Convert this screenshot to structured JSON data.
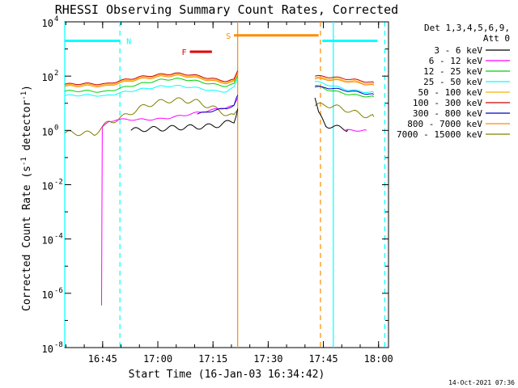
{
  "chart_data": {
    "type": "line",
    "title": "RHESSI Observing Summary Count Rates, Corrected",
    "xlabel": "Start Time (16-Jan-03 16:34:42)",
    "ylabel_main": "Corrected Count Rate (s",
    "ylabel_sup1": "-1",
    "ylabel_mid": " detector",
    "ylabel_sup2": "-1",
    "ylabel_end": ")",
    "x_units": "minutes after 16:34:42",
    "xlim": [
      0,
      88
    ],
    "ylim_log10": [
      -8,
      4
    ],
    "x_ticks": [
      {
        "t": 10.3,
        "label": "16:45"
      },
      {
        "t": 25.3,
        "label": "17:00"
      },
      {
        "t": 40.3,
        "label": "17:15"
      },
      {
        "t": 55.3,
        "label": "17:30"
      },
      {
        "t": 70.3,
        "label": "17:45"
      },
      {
        "t": 85.3,
        "label": "18:00"
      }
    ],
    "y_ticks": [
      {
        "exp": -8,
        "base": "10",
        "sup": "-8"
      },
      {
        "exp": -6,
        "base": "10",
        "sup": "-6"
      },
      {
        "exp": -4,
        "base": "10",
        "sup": "-4"
      },
      {
        "exp": -2,
        "base": "10",
        "sup": "-2"
      },
      {
        "exp": 0,
        "base": "10",
        "sup": "0"
      },
      {
        "exp": 2,
        "base": "10",
        "sup": "2"
      },
      {
        "exp": 4,
        "base": "10",
        "sup": "4"
      }
    ],
    "legend_header": [
      "Det 1,3,4,5,6,9,",
      "Att 0"
    ],
    "legend_position": "right",
    "series": [
      {
        "name": "3 - 6 keV",
        "color": "#000000",
        "key": "s3_6"
      },
      {
        "name": "6 - 12 keV",
        "color": "#ff00ff",
        "key": "s6_12"
      },
      {
        "name": "12 - 25 keV",
        "color": "#00d000",
        "key": "s12_25"
      },
      {
        "name": "25 - 50 keV",
        "color": "#00ffff",
        "key": "s25_50"
      },
      {
        "name": "50 - 100 keV",
        "color": "#ffb000",
        "key": "s50_100"
      },
      {
        "name": "100 - 300 keV",
        "color": "#d00000",
        "key": "s100_300"
      },
      {
        "name": "300 - 800 keV",
        "color": "#0000c0",
        "key": "s300_800"
      },
      {
        "name": "800 - 7000 keV",
        "color": "#ff8c00",
        "key": "s800_7000"
      },
      {
        "name": "7000 - 15000 keV",
        "color": "#808000",
        "key": "s7000_15000"
      }
    ],
    "series_points": {
      "s25_50": [
        [
          0,
          1.28
        ],
        [
          4,
          1.3
        ],
        [
          8,
          1.3
        ],
        [
          11,
          1.26
        ],
        [
          14,
          1.36
        ],
        [
          20,
          1.5
        ],
        [
          26,
          1.62
        ],
        [
          30,
          1.64
        ],
        [
          34,
          1.6
        ],
        [
          38,
          1.52
        ],
        [
          41,
          1.44
        ],
        [
          44,
          1.44
        ],
        [
          46,
          1.58
        ],
        [
          47,
          1.9
        ]
      ],
      "s12_25": [
        [
          0,
          1.44
        ],
        [
          4,
          1.46
        ],
        [
          8,
          1.44
        ],
        [
          11,
          1.42
        ],
        [
          14,
          1.52
        ],
        [
          20,
          1.7
        ],
        [
          26,
          1.86
        ],
        [
          30,
          1.9
        ],
        [
          34,
          1.86
        ],
        [
          38,
          1.76
        ],
        [
          41,
          1.68
        ],
        [
          44,
          1.64
        ],
        [
          46,
          1.7
        ],
        [
          47,
          2.0
        ]
      ],
      "s800_7000": [
        [
          0,
          1.62
        ],
        [
          4,
          1.64
        ],
        [
          8,
          1.64
        ],
        [
          11,
          1.62
        ],
        [
          14,
          1.72
        ],
        [
          20,
          1.88
        ],
        [
          26,
          1.98
        ],
        [
          30,
          2.02
        ],
        [
          34,
          1.98
        ],
        [
          38,
          1.88
        ],
        [
          41,
          1.8
        ],
        [
          44,
          1.74
        ],
        [
          46,
          1.78
        ],
        [
          47,
          2.1
        ]
      ],
      "s100_300": [
        [
          0,
          1.7
        ],
        [
          4,
          1.72
        ],
        [
          8,
          1.72
        ],
        [
          11,
          1.7
        ],
        [
          14,
          1.8
        ],
        [
          20,
          1.96
        ],
        [
          26,
          2.06
        ],
        [
          30,
          2.1
        ],
        [
          34,
          2.06
        ],
        [
          38,
          1.96
        ],
        [
          41,
          1.88
        ],
        [
          44,
          1.82
        ],
        [
          46,
          1.86
        ],
        [
          47,
          2.2
        ]
      ],
      "s50_100": [
        [
          0,
          1.66
        ],
        [
          4,
          1.68
        ],
        [
          8,
          1.68
        ],
        [
          11,
          1.66
        ],
        [
          14,
          1.76
        ],
        [
          20,
          1.92
        ],
        [
          26,
          2.02
        ],
        [
          30,
          2.06
        ],
        [
          34,
          2.02
        ],
        [
          38,
          1.92
        ],
        [
          41,
          1.84
        ],
        [
          44,
          1.78
        ],
        [
          46,
          1.82
        ],
        [
          47,
          2.14
        ]
      ],
      "s300_800": [
        [
          36,
          0.6
        ],
        [
          40,
          0.72
        ],
        [
          44,
          0.82
        ],
        [
          46,
          0.92
        ],
        [
          47,
          1.3
        ]
      ],
      "s6_12": [
        [
          10,
          -6.45
        ],
        [
          10.2,
          0.1
        ],
        [
          12,
          0.32
        ],
        [
          14,
          0.4
        ],
        [
          18,
          0.4
        ],
        [
          22,
          0.4
        ],
        [
          26,
          0.42
        ],
        [
          30,
          0.5
        ],
        [
          34,
          0.6
        ],
        [
          38,
          0.7
        ],
        [
          42,
          0.8
        ],
        [
          46,
          0.9
        ],
        [
          47,
          1.2
        ]
      ],
      "s3_6": [
        [
          18,
          0.0
        ],
        [
          22,
          0.05
        ],
        [
          26,
          0.06
        ],
        [
          30,
          0.1
        ],
        [
          34,
          0.12
        ],
        [
          38,
          0.14
        ],
        [
          42,
          0.2
        ],
        [
          46,
          0.35
        ],
        [
          47,
          0.8
        ]
      ],
      "s7000_15000": [
        [
          0,
          -0.1
        ],
        [
          4,
          -0.1
        ],
        [
          8,
          -0.12
        ],
        [
          12,
          0.3
        ],
        [
          16,
          0.5
        ],
        [
          20,
          0.8
        ],
        [
          24,
          1.0
        ],
        [
          28,
          1.1
        ],
        [
          32,
          1.12
        ],
        [
          36,
          1.05
        ],
        [
          40,
          0.85
        ],
        [
          44,
          0.6
        ],
        [
          46,
          0.5
        ],
        [
          47,
          0.75
        ]
      ],
      "s25_50_b": [
        [
          68,
          1.8
        ],
        [
          71,
          1.7
        ],
        [
          74,
          1.6
        ],
        [
          77,
          1.5
        ],
        [
          80,
          1.44
        ],
        [
          84,
          1.4
        ]
      ],
      "s12_25_b": [
        [
          68,
          1.66
        ],
        [
          71,
          1.52
        ],
        [
          74,
          1.42
        ],
        [
          77,
          1.34
        ],
        [
          80,
          1.28
        ],
        [
          84,
          1.24
        ]
      ],
      "s800_7000_b": [
        [
          68,
          1.9
        ],
        [
          71,
          1.88
        ],
        [
          74,
          1.84
        ],
        [
          77,
          1.8
        ],
        [
          80,
          1.74
        ],
        [
          84,
          1.66
        ]
      ],
      "s100_300_b": [
        [
          68,
          2.0
        ],
        [
          71,
          1.98
        ],
        [
          74,
          1.94
        ],
        [
          77,
          1.9
        ],
        [
          80,
          1.84
        ],
        [
          84,
          1.76
        ]
      ],
      "s50_100_b": [
        [
          68,
          1.94
        ],
        [
          71,
          1.92
        ],
        [
          74,
          1.88
        ],
        [
          77,
          1.84
        ],
        [
          80,
          1.78
        ],
        [
          84,
          1.7
        ]
      ],
      "s300_800_b": [
        [
          68,
          1.6
        ],
        [
          71,
          1.58
        ],
        [
          74,
          1.52
        ],
        [
          77,
          1.46
        ],
        [
          80,
          1.4
        ],
        [
          84,
          1.32
        ]
      ],
      "s3_6_b": [
        [
          68,
          1.2
        ],
        [
          69,
          0.6
        ],
        [
          71,
          0.2
        ],
        [
          74,
          0.1
        ],
        [
          77,
          0.05
        ]
      ],
      "s7000_15000_b": [
        [
          68,
          0.9
        ],
        [
          71,
          0.95
        ],
        [
          74,
          0.85
        ],
        [
          77,
          0.75
        ],
        [
          80,
          0.6
        ],
        [
          84,
          0.5
        ]
      ],
      "s6_12_b": [
        [
          76,
          0.0
        ],
        [
          82,
          0.0
        ]
      ]
    },
    "markers": {
      "N": {
        "label": "N",
        "color": "#00ffff",
        "segments": [
          [
            0,
            15
          ],
          [
            70,
            85
          ]
        ],
        "log10": 3.3
      },
      "F": {
        "label": "F",
        "color": "#e00000",
        "segments": [
          [
            34,
            40
          ]
        ],
        "log10": 2.9
      },
      "S": {
        "label": "S",
        "color": "#ff8c00",
        "segments": [
          [
            46,
            69
          ]
        ],
        "log10": 3.5
      }
    },
    "vlines": [
      {
        "t": 15,
        "color": "#00ffff",
        "dashed": true
      },
      {
        "t": 47,
        "color": "#ff8c00",
        "dashed": false
      },
      {
        "t": 69.5,
        "color": "#ff8c00",
        "dashed": true
      },
      {
        "t": 73,
        "color": "#00ffff",
        "dashed": false
      },
      {
        "t": 87,
        "color": "#00ffff",
        "dashed": true
      },
      {
        "t": 0,
        "color": "#00ffff",
        "dashed": false
      }
    ],
    "timestamp": "14-Oct-2021 07:36"
  }
}
